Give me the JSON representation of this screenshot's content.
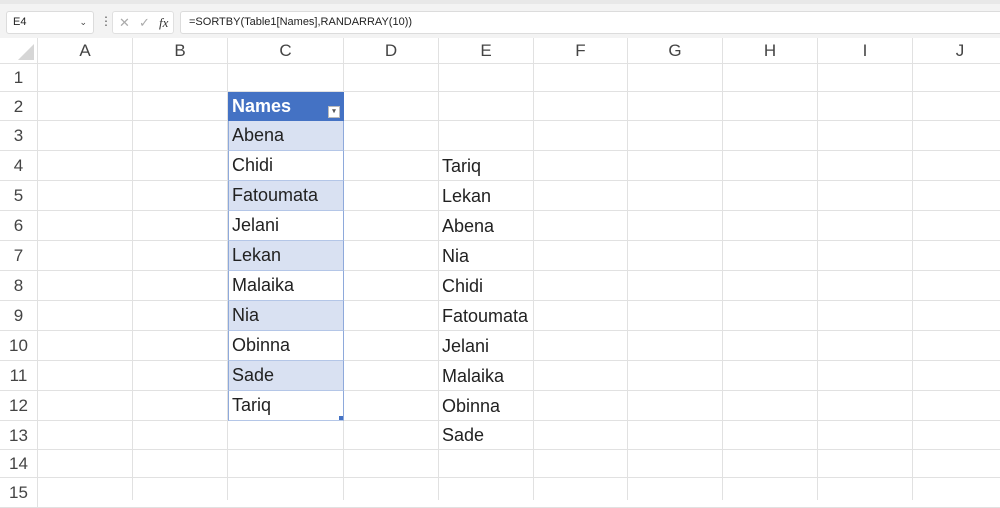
{
  "name_box": "E4",
  "formula": "=SORTBY(Table1[Names],RANDARRAY(10))",
  "formula_icons": {
    "cancel": "✕",
    "enter": "✓",
    "function": "fx"
  },
  "columns": [
    "A",
    "B",
    "C",
    "D",
    "E",
    "F",
    "G",
    "H",
    "I",
    "J"
  ],
  "rows": [
    "1",
    "2",
    "3",
    "4",
    "5",
    "6",
    "7",
    "8",
    "9",
    "10",
    "11",
    "12",
    "13",
    "14",
    "15"
  ],
  "table": {
    "header": "Names",
    "values": [
      "Abena",
      "Chidi",
      "Fatoumata",
      "Jelani",
      "Lekan",
      "Malaika",
      "Nia",
      "Obinna",
      "Sade",
      "Tariq"
    ],
    "header_color": "#4472c4",
    "band_color": "#d9e1f2"
  },
  "result": [
    "Tariq",
    "Lekan",
    "Abena",
    "Nia",
    "Chidi",
    "Fatoumata",
    "Jelani",
    "Malaika",
    "Obinna",
    "Sade"
  ]
}
